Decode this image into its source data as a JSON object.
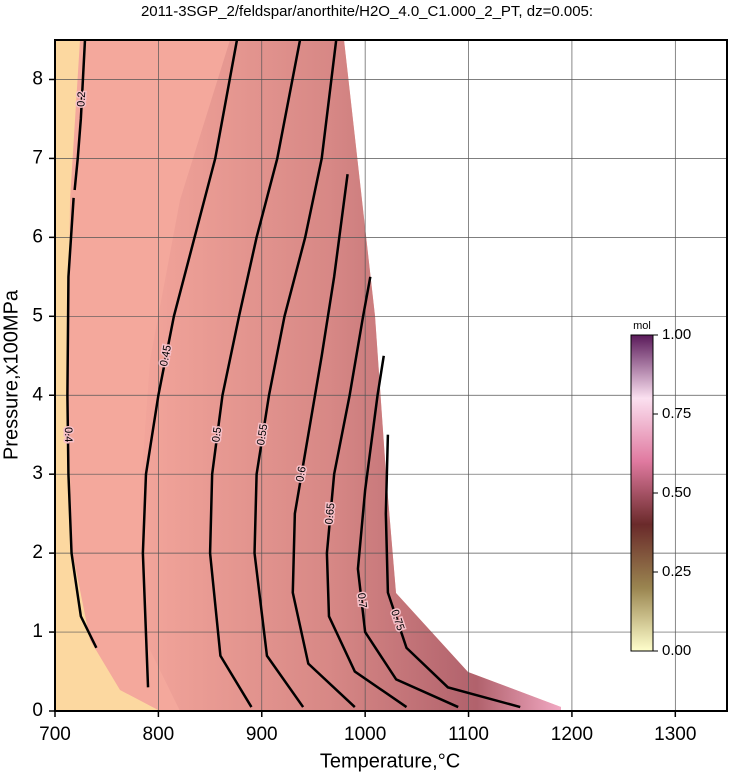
{
  "chart_data": {
    "type": "contour",
    "title": "2011-3SGP_2/feldspar/anorthite/H2O_4.0_C1.000_2_PT, dz=0.005:",
    "x_label": "Temperature,°C",
    "y_label": "Pressure,x100MPa",
    "xlim": [
      700,
      1350
    ],
    "ylim": [
      0,
      8.5
    ],
    "xticks": [
      700,
      800,
      900,
      1000,
      1100,
      1200,
      1300
    ],
    "yticks": [
      0,
      1,
      2,
      3,
      4,
      5,
      6,
      7,
      8
    ],
    "grid": true,
    "line_color": "#000000",
    "series": [
      {
        "name": "0.2",
        "x": [
          729,
          727,
          725,
          722,
          719
        ],
        "y": [
          8.5,
          8,
          7.5,
          7,
          6.6
        ]
      },
      {
        "name": "0.4",
        "x": [
          718,
          713,
          712,
          713,
          716,
          725,
          740
        ],
        "y": [
          6.5,
          5.5,
          4,
          3,
          2,
          1.2,
          0.8
        ]
      },
      {
        "name": "0.45",
        "x": [
          790,
          785,
          788,
          800,
          815,
          835,
          855,
          876
        ],
        "y": [
          0.3,
          2,
          3,
          4,
          5,
          6,
          7,
          8.5
        ]
      },
      {
        "name": "0.5",
        "x": [
          890,
          860,
          850,
          852,
          862,
          878,
          895,
          915,
          937
        ],
        "y": [
          0.05,
          0.7,
          2,
          3,
          4,
          5,
          6,
          7,
          8.5
        ]
      },
      {
        "name": "0.55",
        "x": [
          940,
          905,
          893,
          895,
          907,
          922,
          942,
          958,
          972
        ],
        "y": [
          0.05,
          0.7,
          2,
          3,
          4,
          5,
          6,
          7,
          8.5
        ]
      },
      {
        "name": "0.6",
        "x": [
          990,
          945,
          930,
          932,
          945,
          958,
          970,
          983
        ],
        "y": [
          0.05,
          0.6,
          1.5,
          2.5,
          3.5,
          4.5,
          5.5,
          6.8
        ]
      },
      {
        "name": "0.65",
        "x": [
          1040,
          990,
          965,
          963,
          970,
          985,
          998,
          1005
        ],
        "y": [
          0.05,
          0.5,
          1.2,
          2,
          3,
          4,
          5,
          5.5
        ]
      },
      {
        "name": "0.7",
        "x": [
          1090,
          1030,
          1000,
          993,
          1000,
          1012,
          1018
        ],
        "y": [
          0.05,
          0.4,
          1,
          1.8,
          2.8,
          4,
          4.5
        ]
      },
      {
        "name": "0.75",
        "x": [
          1150,
          1080,
          1040,
          1022,
          1020,
          1022
        ],
        "y": [
          0.05,
          0.3,
          0.8,
          1.5,
          2.5,
          3.5
        ]
      }
    ],
    "colorbar": {
      "label": "mol",
      "ticks": [
        {
          "value": 0,
          "label": "0.00"
        },
        {
          "value": 0.25,
          "label": "0.25"
        },
        {
          "value": 0.5,
          "label": "0.50"
        },
        {
          "value": 0.75,
          "label": "0.75"
        },
        {
          "value": 1,
          "label": "1.00"
        }
      ],
      "colors": [
        "#ffffcc",
        "#9a8550",
        "#6a2a2a",
        "#e07aa0",
        "#fbe0f0",
        "#5a1a5a"
      ]
    }
  }
}
